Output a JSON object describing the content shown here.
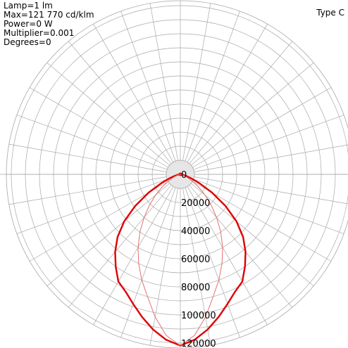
{
  "info": {
    "lamp": "Lamp=1 lm",
    "max": "Max=121 770 cd/klm",
    "power": "Power=0 W",
    "multiplier": "Multiplier=0.001",
    "degrees": "Degrees=0"
  },
  "type_label": "Type C",
  "colors": {
    "background": "#ffffff",
    "grid": "#a8a8a8",
    "center_fill": "#e6e6e6",
    "curve_main": "#e00000",
    "curve_secondary": "#e07070",
    "center_dot": "#ff0000"
  },
  "chart_data": {
    "type": "polar",
    "title": "",
    "scale_max": 120000,
    "radial_ticks": [
      0,
      20000,
      40000,
      60000,
      80000,
      100000,
      120000
    ],
    "radial_tick_labels": [
      "0",
      "20000",
      "40000",
      "60000",
      "80000",
      "100000",
      "120000"
    ],
    "grid": true,
    "angular_step_degrees": 10,
    "series": [
      {
        "name": "",
        "angles": [
          0,
          5,
          10,
          15,
          20,
          25,
          30,
          35,
          40,
          45,
          50,
          55,
          60,
          65,
          70,
          75,
          80,
          85,
          90
        ],
        "values": [
          121770,
          118000,
          112000,
          105000,
          98000,
          92000,
          88000,
          80000,
          72000,
          63000,
          52000,
          39000,
          26000,
          15000,
          8000,
          4000,
          2000,
          1000,
          0
        ]
      },
      {
        "name": "",
        "angles": [
          0,
          5,
          10,
          15,
          20,
          25,
          30,
          35,
          40,
          45,
          50,
          55,
          60,
          65,
          70,
          75,
          80,
          85,
          90
        ],
        "values": [
          121770,
          115000,
          103000,
          90000,
          80000,
          70000,
          60000,
          50000,
          40000,
          31000,
          23000,
          16000,
          10000,
          6000,
          3500,
          2000,
          1000,
          500,
          0
        ]
      }
    ]
  }
}
